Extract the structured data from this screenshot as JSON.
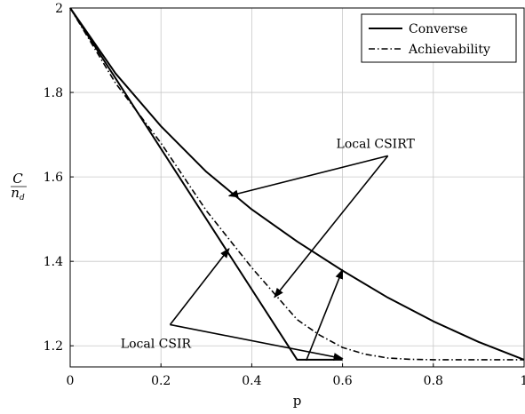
{
  "chart_data": {
    "type": "line",
    "xlabel": "p",
    "ylabel": {
      "numerator": "C",
      "denominator_base": "n",
      "denominator_sub": "d"
    },
    "xlim": [
      0,
      1
    ],
    "ylim": [
      1.15,
      2.0
    ],
    "xticks": [
      {
        "value": 0,
        "label": "0"
      },
      {
        "value": 0.2,
        "label": "0.2"
      },
      {
        "value": 0.4,
        "label": "0.4"
      },
      {
        "value": 0.6,
        "label": "0.6"
      },
      {
        "value": 0.8,
        "label": "0.8"
      },
      {
        "value": 1,
        "label": "1"
      }
    ],
    "yticks": [
      {
        "value": 1.2,
        "label": "1.2"
      },
      {
        "value": 1.4,
        "label": "1.4"
      },
      {
        "value": 1.6,
        "label": "1.6"
      },
      {
        "value": 1.8,
        "label": "1.8"
      },
      {
        "value": 2,
        "label": "2"
      }
    ],
    "grid": true,
    "legend_position": "top-right",
    "series": [
      {
        "name": "Converse",
        "style": "solid",
        "x": [
          0,
          0.1,
          0.2,
          0.3,
          0.4,
          0.5,
          0.6,
          0.7,
          0.8,
          0.9,
          1.0
        ],
        "y": [
          2.0,
          1.845,
          1.72,
          1.612,
          1.523,
          1.447,
          1.378,
          1.314,
          1.258,
          1.209,
          1.167
        ]
      },
      {
        "name": "Achievability",
        "style": "dashdot",
        "x": [
          0,
          0.1,
          0.2,
          0.3,
          0.4,
          0.5,
          0.55,
          0.6,
          0.65,
          0.7,
          0.75,
          0.8,
          0.9,
          1.0
        ],
        "y": [
          2.0,
          1.822,
          1.68,
          1.52,
          1.385,
          1.262,
          1.225,
          1.196,
          1.18,
          1.171,
          1.168,
          1.167,
          1.167,
          1.167
        ]
      },
      {
        "name": "",
        "style": "solid",
        "x": [
          0,
          0.5,
          0.6
        ],
        "y": [
          2.0,
          1.167,
          1.167
        ]
      }
    ],
    "annotations": [
      {
        "text": "Local CSIRT",
        "pointer_from": [
          0.7,
          1.65
        ],
        "pointer_targets": [
          [
            0.35,
            1.555
          ],
          [
            0.45,
            1.315
          ]
        ]
      },
      {
        "text": "Local CSIR",
        "pointer_from": [
          0.22,
          1.25
        ],
        "pointer_targets": [
          [
            0.35,
            1.43
          ],
          [
            0.6,
            1.17
          ]
        ]
      },
      {
        "text": "",
        "pointer_from": [
          0.52,
          1.165
        ],
        "pointer_targets": [
          [
            0.6,
            1.38
          ]
        ]
      }
    ]
  }
}
